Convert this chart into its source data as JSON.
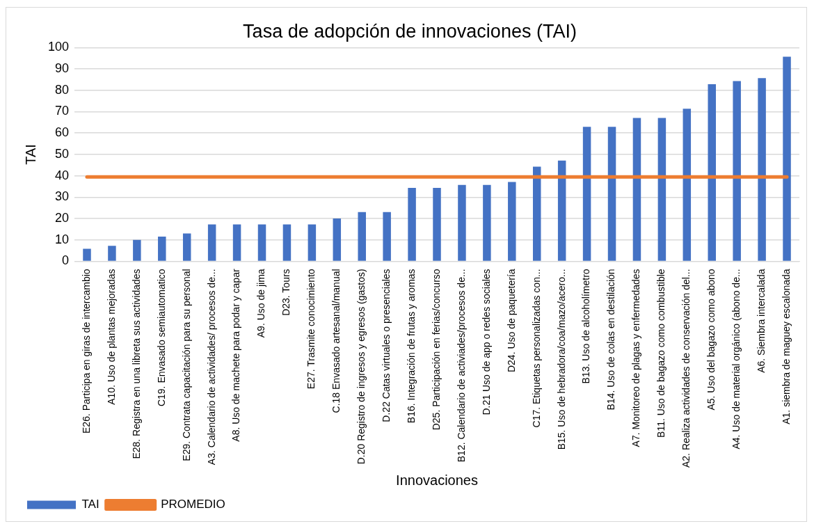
{
  "chart_data": {
    "type": "bar",
    "title": "Tasa de adopción de innovaciones (TAI)",
    "xlabel": "Innovaciones",
    "ylabel": "TAI",
    "categories": [
      "E26. Participa en giras de intercambio",
      "A10. Uso de plantas mejoradas",
      "E28. Registra en una libreta sus actividades",
      "C19. Envasado semiautomatico",
      "E29. Contrata capacitación para su personal",
      "A3. Calendario de actividades/ procesos de...",
      "A8. Uso de machete para podar y capar",
      "A9. Uso de jima",
      "D23. Tours",
      "E27. Trasmite conocimiento",
      "C.18 Envasado artesanal/manual",
      "D.20 Registro de ingresos y egresos (gastos)",
      "D.22 Catas virtuales o presenciales",
      "B16. Integración de frutas y aromas",
      "D25. Participación en ferias/concurso",
      "B12. Calendario de activiades/procesos de...",
      "D.21 Uso de app o redes sociales",
      "D24. Uso de paquetería",
      "C17. Etiquetas personalizadas con...",
      "B15. Uso de hebradora/coa/mazo/acero...",
      "B13. Uso de alcoholímetro",
      "B14. Uso de colas en destilación",
      "A7. Monitoreo de plagas y enfermedades",
      "B11. Uso de bagazo como combustible",
      "A2. Realiza actividades de conservación del...",
      "A5. Uso del bagazo como abono",
      "A4. Uso de material orgánico (abono de...",
      "A6. Siembra intercalada",
      "A1. siembra de maguey escalonada"
    ],
    "series": [
      {
        "name": "TAI",
        "color": "#4472c4",
        "values": [
          5.8,
          7.2,
          10,
          11.5,
          13,
          17.2,
          17.2,
          17.2,
          17.2,
          17.2,
          20,
          23,
          23,
          34.3,
          34.3,
          35.7,
          35.7,
          37.1,
          44.3,
          47.1,
          62.9,
          62.9,
          67.1,
          67.1,
          71.4,
          82.9,
          84.3,
          85.7,
          95.7
        ]
      },
      {
        "name": "PROMEDIO",
        "type": "line",
        "color": "#ed7d31",
        "values": [
          39.5,
          39.5,
          39.5,
          39.5,
          39.5,
          39.5,
          39.5,
          39.5,
          39.5,
          39.5,
          39.5,
          39.5,
          39.5,
          39.5,
          39.5,
          39.5,
          39.5,
          39.5,
          39.5,
          39.5,
          39.5,
          39.5,
          39.5,
          39.5,
          39.5,
          39.5,
          39.5,
          39.5,
          39.5
        ]
      }
    ],
    "ylim": [
      0,
      100
    ],
    "yticks": [
      0,
      10,
      20,
      30,
      40,
      50,
      60,
      70,
      80,
      90,
      100
    ],
    "grid": "y",
    "legend": "bottom left",
    "marker": "none"
  }
}
